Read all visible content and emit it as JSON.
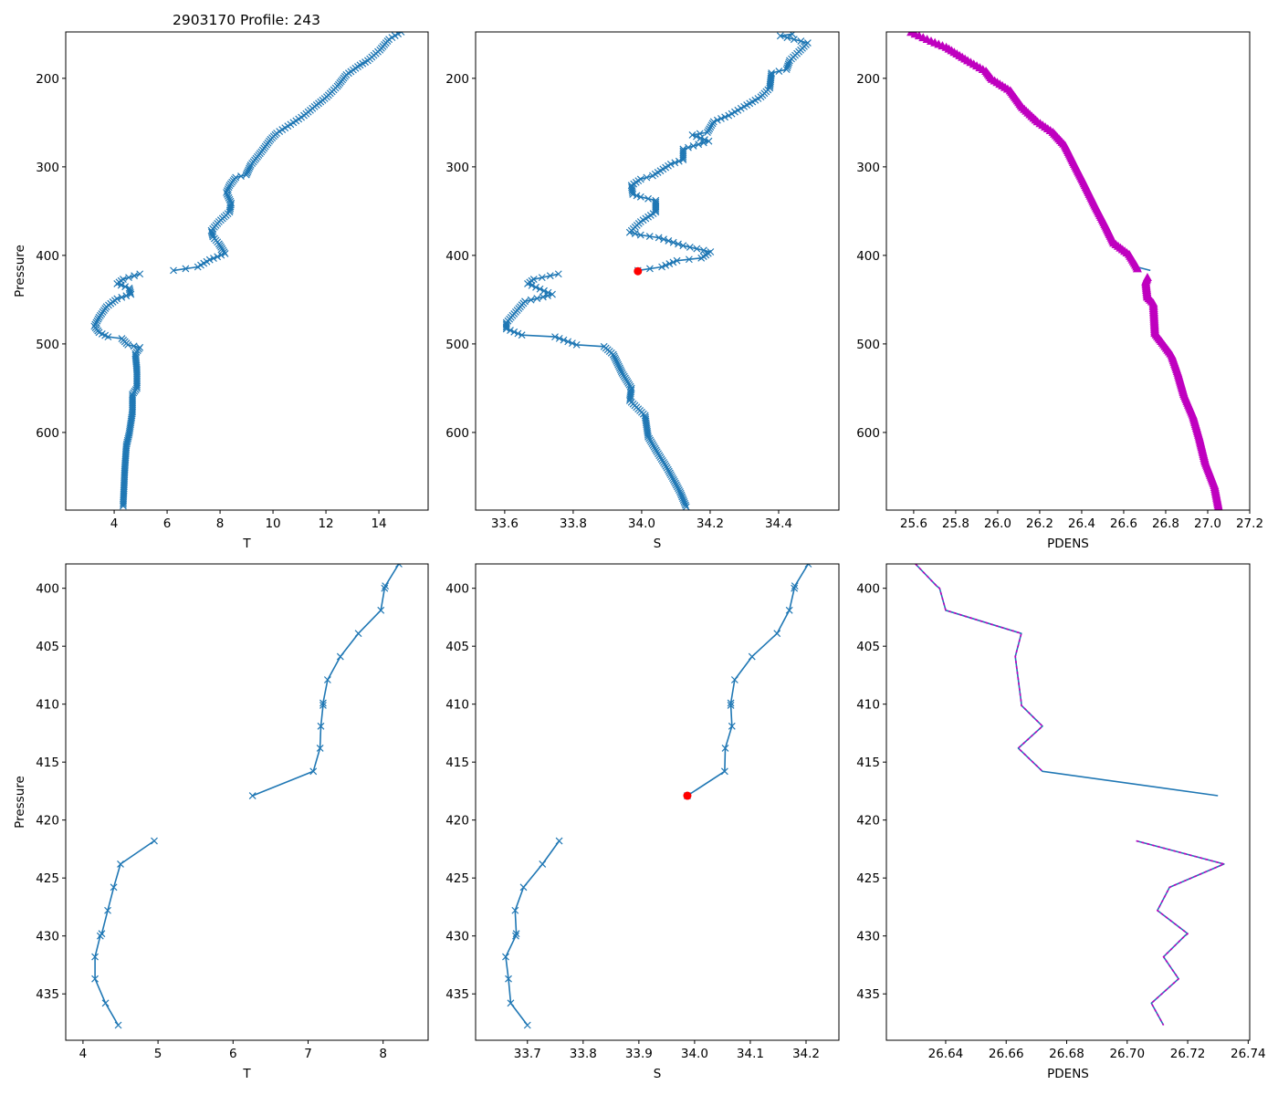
{
  "figure": {
    "title": "2903170 Profile: 243"
  },
  "colors": {
    "line": "#1f77b4",
    "density_marker": "#bf00bf",
    "highlight": "#ff0000",
    "axis": "#000000"
  },
  "chart_data": [
    {
      "type": "line",
      "panel": "top-temperature",
      "title": "2903170 Profile: 243",
      "xlabel": "T",
      "ylabel": "Pressure",
      "xlim": [
        2.17,
        15.86
      ],
      "ylim": [
        147.6,
        687.7
      ],
      "y_inverted": true,
      "grid": false,
      "xticks": [
        4,
        6,
        8,
        10,
        12,
        14
      ],
      "xtick_labels": [
        "4",
        "6",
        "8",
        "10",
        "12",
        "14"
      ],
      "yticks": [
        200,
        300,
        400,
        500,
        600
      ],
      "ytick_labels": [
        "200",
        "300",
        "400",
        "500",
        "600"
      ],
      "series": [
        {
          "name": "T",
          "color": "#1f77b4",
          "marker": "x",
          "dense_markers": true,
          "pressure": [
            147.6,
            156,
            168,
            180,
            185,
            196,
            209,
            221,
            232,
            242,
            250,
            262,
            269,
            283,
            298,
            309,
            312,
            321,
            329,
            341,
            351,
            362,
            372,
            379,
            387,
            398,
            405,
            413,
            417,
            419,
            421,
            427,
            432,
            437,
            444,
            449,
            458,
            470,
            480,
            487,
            492,
            494,
            501,
            504,
            511,
            530,
            550,
            557,
            577,
            601,
            615,
            642,
            683
          ],
          "values": [
            14.84,
            14.38,
            14.04,
            13.58,
            13.29,
            12.77,
            12.43,
            12.03,
            11.57,
            11.17,
            10.77,
            10.14,
            9.91,
            9.56,
            9.16,
            8.99,
            8.59,
            8.36,
            8.24,
            8.42,
            8.36,
            7.96,
            7.67,
            7.73,
            7.96,
            8.19,
            7.61,
            7.16,
            6.24,
            null,
            4.97,
            4.34,
            4.11,
            4.57,
            4.63,
            4.11,
            3.71,
            3.43,
            3.25,
            3.43,
            3.77,
            4.29,
            4.52,
            4.97,
            4.8,
            4.86,
            4.86,
            4.69,
            4.69,
            4.57,
            4.46,
            4.4,
            4.34
          ]
        }
      ]
    },
    {
      "type": "line",
      "panel": "top-salinity",
      "xlabel": "S",
      "ylabel": "",
      "xlim": [
        33.515,
        34.576
      ],
      "ylim": [
        147.6,
        687.7
      ],
      "y_inverted": true,
      "grid": false,
      "xticks": [
        33.6,
        33.8,
        34.0,
        34.2,
        34.4
      ],
      "xtick_labels": [
        "33.6",
        "33.8",
        "34.0",
        "34.2",
        "34.4"
      ],
      "yticks": [
        200,
        300,
        400,
        500,
        600
      ],
      "ytick_labels": [
        "200",
        "300",
        "400",
        "500",
        "600"
      ],
      "series": [
        {
          "name": "S",
          "color": "#1f77b4",
          "marker": "x",
          "dense_markers": true,
          "pressure": [
            150,
            152,
            160,
            170,
            180,
            190,
            194,
            211,
            221,
            232,
            242,
            249,
            261,
            264,
            271,
            280,
            292,
            297,
            310,
            314,
            321,
            331,
            334,
            338,
            351,
            362,
            374,
            377,
            380,
            389,
            396,
            403,
            406,
            413,
            417,
            419,
            421,
            427,
            432,
            444,
            447,
            452,
            460,
            476,
            483,
            490,
            492,
            501,
            503,
            512,
            533,
            550,
            564,
            581,
            605,
            622,
            642,
            667,
            684
          ],
          "values": [
            34.44,
            34.405,
            34.485,
            34.459,
            34.432,
            34.423,
            34.379,
            34.374,
            34.348,
            34.299,
            34.254,
            34.21,
            34.192,
            34.148,
            34.196,
            34.121,
            34.121,
            34.085,
            34.032,
            33.997,
            33.97,
            33.974,
            33.997,
            34.041,
            34.041,
            33.997,
            33.965,
            33.997,
            34.05,
            34.121,
            34.201,
            34.174,
            34.103,
            34.059,
            33.989,
            null,
            33.757,
            33.685,
            33.667,
            33.739,
            33.712,
            33.659,
            33.641,
            33.605,
            33.605,
            33.65,
            33.747,
            33.81,
            33.89,
            33.917,
            33.943,
            33.97,
            33.965,
            34.01,
            34.019,
            34.045,
            34.077,
            34.112,
            34.13
          ]
        }
      ],
      "highlight_point": {
        "value": 33.989,
        "pressure": 417.9,
        "color": "#ff0000"
      }
    },
    {
      "type": "line",
      "panel": "top-density",
      "xlabel": "PDENS",
      "ylabel": "",
      "xlim": [
        25.47,
        27.2
      ],
      "ylim": [
        147.6,
        687.7
      ],
      "y_inverted": true,
      "grid": false,
      "xticks": [
        25.6,
        25.8,
        26.0,
        26.2,
        26.4,
        26.6,
        26.8,
        27.0,
        27.2
      ],
      "xtick_labels": [
        "25.6",
        "25.8",
        "26.0",
        "26.2",
        "26.4",
        "26.6",
        "26.8",
        "27.0",
        "27.2"
      ],
      "yticks": [
        200,
        300,
        400,
        500,
        600
      ],
      "ytick_labels": [
        "200",
        "300",
        "400",
        "500",
        "600"
      ],
      "series": [
        {
          "name": "PDENS",
          "color": "#1f77b4",
          "marker": "none",
          "pressure": [
            148,
            158,
            165,
            180,
            192,
            201,
            214,
            233,
            249,
            261,
            276,
            297,
            317,
            345,
            365,
            386,
            399,
            413,
            417,
            419,
            425,
            430,
            447,
            454,
            488,
            499,
            513,
            533,
            557,
            581,
            605,
            633,
            660,
            686
          ],
          "values": [
            25.588,
            25.683,
            25.755,
            25.857,
            25.944,
            25.973,
            26.06,
            26.118,
            26.19,
            26.263,
            26.321,
            26.365,
            26.408,
            26.466,
            26.51,
            26.553,
            26.626,
            26.662,
            26.727,
            null,
            26.713,
            26.705,
            26.713,
            26.741,
            26.749,
            26.785,
            26.829,
            26.858,
            26.887,
            26.93,
            26.959,
            26.988,
            27.032,
            27.053
          ]
        },
        {
          "name": "PDENS markers",
          "color": "#bf00bf",
          "marker": "^",
          "dense_markers": true,
          "line": false,
          "pressure": [
            148,
            158,
            165,
            180,
            192,
            201,
            214,
            233,
            249,
            261,
            276,
            297,
            317,
            345,
            365,
            386,
            399,
            413,
            415,
            419,
            425,
            430,
            447,
            454,
            488,
            499,
            513,
            533,
            557,
            581,
            605,
            633,
            660,
            686
          ],
          "values": [
            25.588,
            25.683,
            25.755,
            25.857,
            25.944,
            25.973,
            26.06,
            26.118,
            26.19,
            26.263,
            26.321,
            26.365,
            26.408,
            26.466,
            26.51,
            26.553,
            26.626,
            26.662,
            26.665,
            null,
            26.713,
            26.705,
            26.713,
            26.741,
            26.749,
            26.785,
            26.829,
            26.858,
            26.887,
            26.93,
            26.959,
            26.988,
            27.032,
            27.053
          ]
        }
      ]
    },
    {
      "type": "line",
      "panel": "bottom-temperature",
      "xlabel": "T",
      "ylabel": "Pressure",
      "xlim": [
        3.77,
        8.6
      ],
      "ylim": [
        397.9,
        439.0
      ],
      "y_inverted": true,
      "grid": false,
      "xticks": [
        4,
        5,
        6,
        7,
        8
      ],
      "xtick_labels": [
        "4",
        "5",
        "6",
        "7",
        "8"
      ],
      "yticks": [
        400,
        405,
        410,
        415,
        420,
        425,
        430,
        435
      ],
      "ytick_labels": [
        "400",
        "405",
        "410",
        "415",
        "420",
        "425",
        "430",
        "435"
      ],
      "series": [
        {
          "name": "T",
          "color": "#1f77b4",
          "marker": "x",
          "pressure": [
            397.9,
            399.8,
            400.0,
            401.9,
            403.9,
            405.9,
            407.9,
            409.9,
            410.1,
            411.9,
            413.8,
            415.8,
            417.9,
            419.8,
            421.8,
            423.8,
            425.8,
            427.8,
            429.8,
            430.0,
            431.8,
            433.7,
            435.8,
            437.7
          ],
          "values": [
            8.21,
            8.03,
            8.02,
            7.97,
            7.67,
            7.43,
            7.26,
            7.2,
            7.2,
            7.17,
            7.16,
            7.07,
            6.26,
            null,
            4.95,
            4.5,
            4.41,
            4.33,
            4.25,
            4.23,
            4.16,
            4.16,
            4.3,
            4.47
          ]
        }
      ]
    },
    {
      "type": "line",
      "panel": "bottom-salinity",
      "xlabel": "S",
      "ylabel": "",
      "xlim": [
        33.607,
        34.259
      ],
      "ylim": [
        397.9,
        439.0
      ],
      "y_inverted": true,
      "grid": false,
      "xticks": [
        33.7,
        33.8,
        33.9,
        34.0,
        34.1,
        34.2
      ],
      "xtick_labels": [
        "33.7",
        "33.8",
        "33.9",
        "34.0",
        "34.1",
        "34.2"
      ],
      "yticks": [
        400,
        405,
        410,
        415,
        420,
        425,
        430,
        435
      ],
      "ytick_labels": [
        "400",
        "405",
        "410",
        "415",
        "420",
        "425",
        "430",
        "435"
      ],
      "series": [
        {
          "name": "S",
          "color": "#1f77b4",
          "marker": "x",
          "pressure": [
            397.9,
            399.8,
            400.0,
            401.9,
            403.9,
            405.9,
            407.9,
            409.9,
            410.1,
            411.9,
            413.8,
            415.8,
            417.9,
            419.8,
            421.8,
            423.8,
            425.8,
            427.8,
            429.8,
            430.0,
            431.8,
            433.7,
            435.8,
            437.7
          ],
          "values": [
            34.204,
            34.18,
            34.179,
            34.17,
            34.148,
            34.103,
            34.072,
            34.065,
            34.065,
            34.067,
            34.055,
            34.054,
            33.987,
            null,
            33.757,
            33.727,
            33.693,
            33.678,
            33.68,
            33.679,
            33.661,
            33.666,
            33.67,
            33.7
          ]
        }
      ],
      "highlight_point": {
        "value": 33.987,
        "pressure": 417.9,
        "color": "#ff0000"
      }
    },
    {
      "type": "line",
      "panel": "bottom-density",
      "xlabel": "PDENS",
      "ylabel": "",
      "xlim": [
        26.6204,
        26.7405
      ],
      "ylim": [
        397.9,
        439.0
      ],
      "y_inverted": true,
      "grid": false,
      "xticks": [
        26.64,
        26.66,
        26.68,
        26.7,
        26.72,
        26.74
      ],
      "xtick_labels": [
        "26.64",
        "26.66",
        "26.68",
        "26.70",
        "26.72",
        "26.74"
      ],
      "yticks": [
        400,
        405,
        410,
        415,
        420,
        425,
        430,
        435
      ],
      "ytick_labels": [
        "400",
        "405",
        "410",
        "415",
        "420",
        "425",
        "430",
        "435"
      ],
      "series": [
        {
          "name": "PDENS",
          "color": "#1f77b4",
          "marker": "none",
          "pressure": [
            397.9,
            399.8,
            400.0,
            401.9,
            403.9,
            405.9,
            407.9,
            409.9,
            410.1,
            411.9,
            413.8,
            415.8,
            417.9,
            419.8,
            421.8,
            423.8,
            425.8,
            427.8,
            429.8,
            430.0,
            431.8,
            433.7,
            435.8,
            437.7
          ],
          "values": [
            26.63,
            26.637,
            26.638,
            26.64,
            26.665,
            26.663,
            26.664,
            26.665,
            26.665,
            26.672,
            26.664,
            26.672,
            26.73,
            null,
            26.703,
            26.732,
            26.714,
            26.71,
            26.72,
            26.719,
            26.712,
            26.717,
            26.708,
            26.712
          ]
        },
        {
          "name": "PDENS filtered",
          "color": "#bf00bf",
          "marker": "none",
          "dashed": true,
          "pressure": [
            397.9,
            399.8,
            400.0,
            401.9,
            403.9,
            405.9,
            407.9,
            409.9,
            410.1,
            411.9,
            413.8,
            415.8,
            417.9,
            419.8,
            421.8,
            423.8,
            425.8,
            427.8,
            429.8,
            430.0,
            431.8,
            433.7,
            435.8,
            437.7
          ],
          "values": [
            26.63,
            26.637,
            26.638,
            26.64,
            26.665,
            26.663,
            26.664,
            26.665,
            26.665,
            26.672,
            26.664,
            26.672,
            null,
            null,
            26.703,
            26.732,
            26.714,
            26.71,
            26.72,
            26.719,
            26.712,
            26.717,
            26.708,
            26.712
          ]
        }
      ]
    }
  ]
}
